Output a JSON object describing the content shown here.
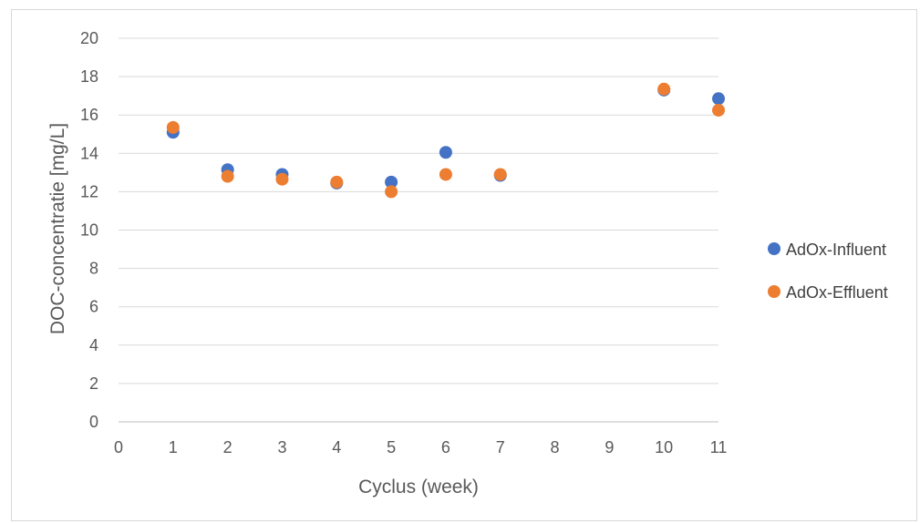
{
  "chart_data": {
    "type": "scatter",
    "title": "",
    "xlabel": "Cyclus (week)",
    "ylabel": "DOC-concentratie [mg/L]",
    "xlim": [
      0,
      11
    ],
    "ylim": [
      0,
      20
    ],
    "xticks": [
      0,
      1,
      2,
      3,
      4,
      5,
      6,
      7,
      8,
      9,
      10,
      11
    ],
    "yticks": [
      0,
      2,
      4,
      6,
      8,
      10,
      12,
      14,
      16,
      18,
      20
    ],
    "grid": true,
    "legend_position": "right",
    "series": [
      {
        "name": "AdOx-Influent",
        "color": "#4472C4",
        "x": [
          1,
          2,
          3,
          4,
          5,
          6,
          7,
          10,
          11
        ],
        "y": [
          15.1,
          13.15,
          12.9,
          12.45,
          12.5,
          14.05,
          12.85,
          17.3,
          16.85
        ]
      },
      {
        "name": "AdOx-Effluent",
        "color": "#ED7D31",
        "x": [
          1,
          2,
          3,
          4,
          5,
          6,
          7,
          10,
          11
        ],
        "y": [
          15.35,
          12.8,
          12.65,
          12.5,
          12.0,
          12.9,
          12.9,
          17.35,
          16.25
        ]
      }
    ]
  }
}
